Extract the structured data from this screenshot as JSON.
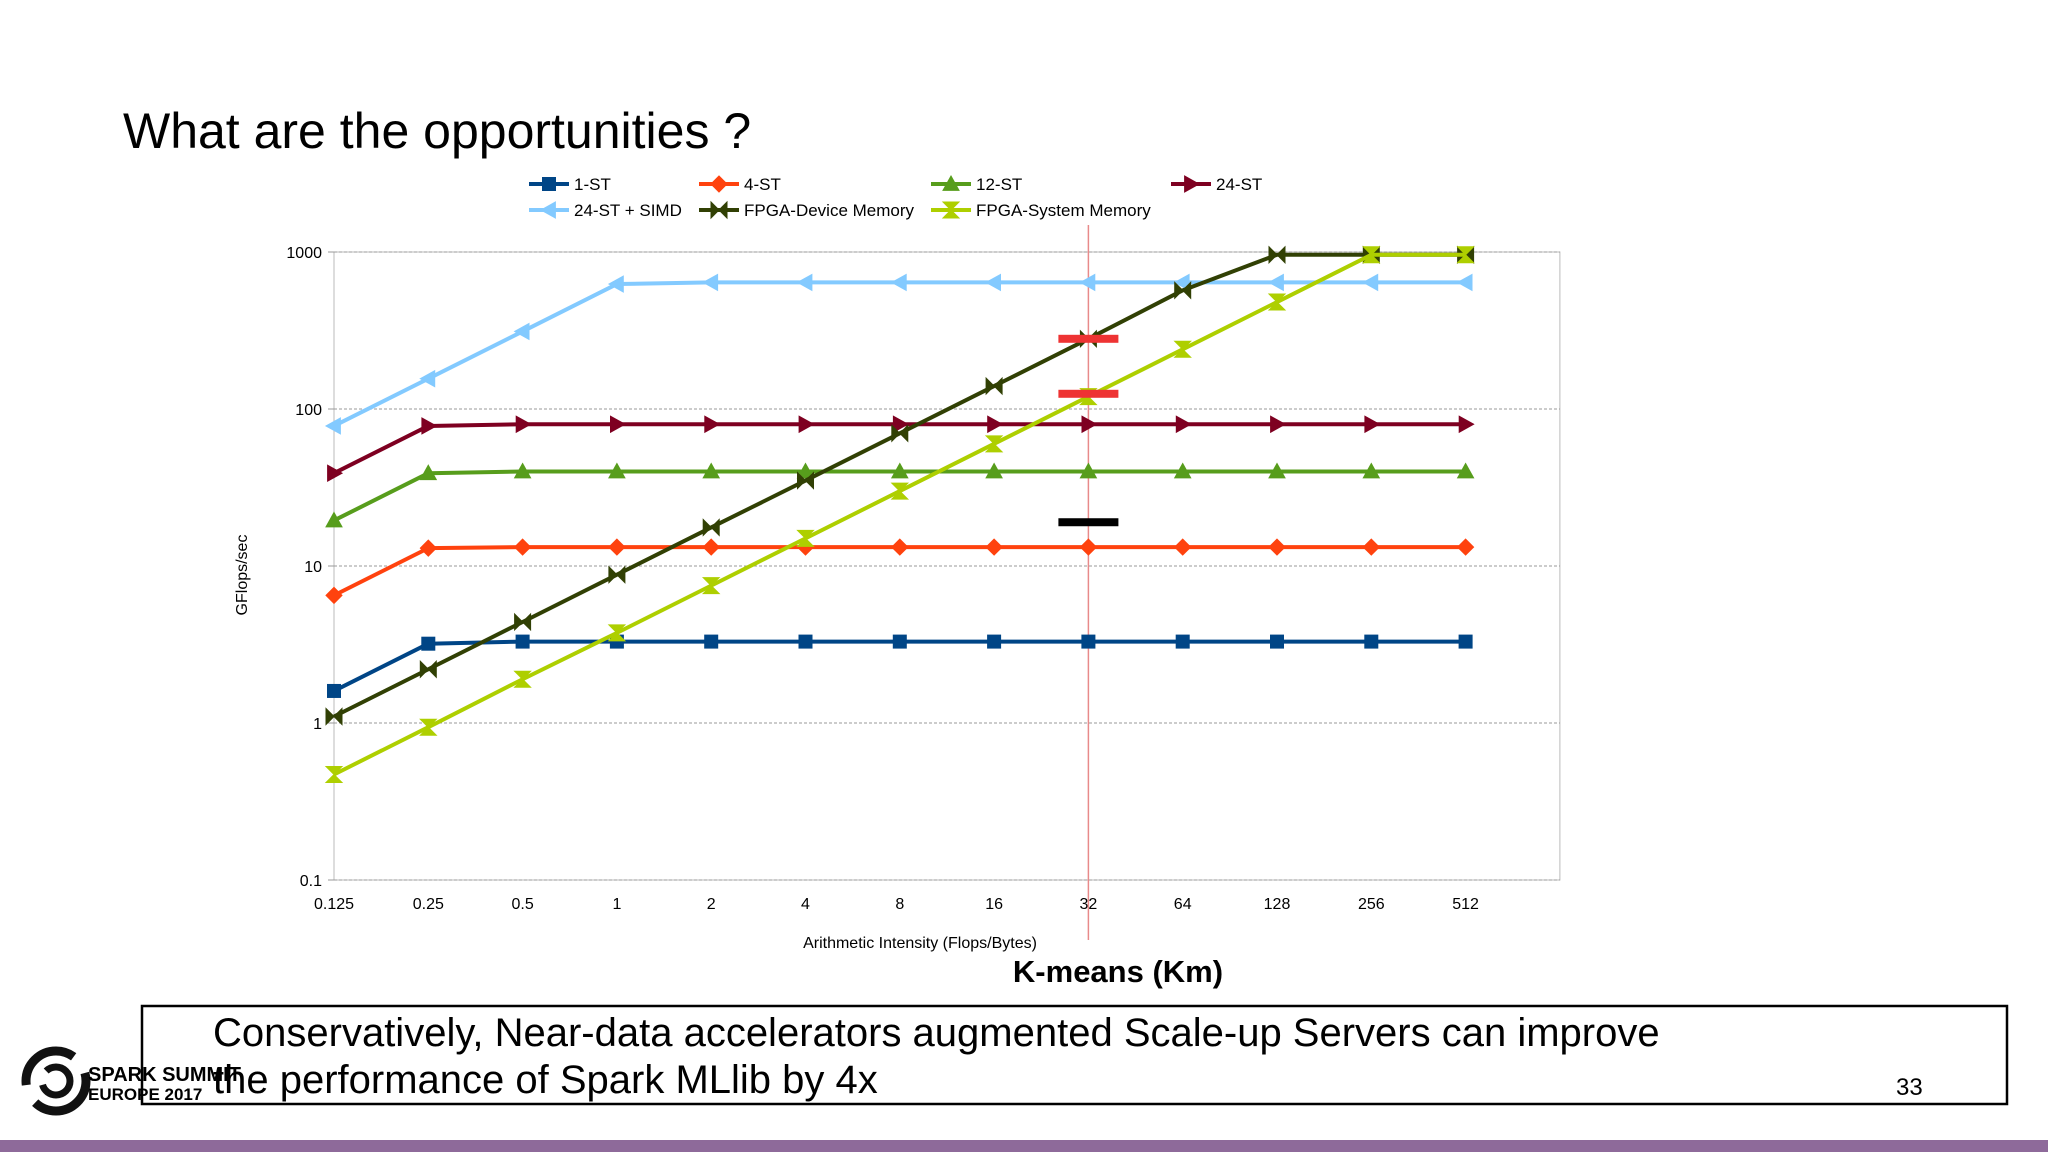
{
  "slide": {
    "title": "What are the opportunities ?",
    "caption": "K-means (Km)",
    "callout": [
      "Conservatively,  Near-data accelerators augmented Scale-up Servers can improve",
      "the performance of Spark MLlib by 4x"
    ],
    "page_number": "33",
    "logo": [
      "SPARK SUMMIT",
      "EUROPE 2017"
    ]
  },
  "chart_data": {
    "type": "line",
    "x_label": "Arithmetic Intensity (Flops/Bytes)",
    "y_label": "GFlops/sec",
    "categories": [
      "0.125",
      "0.25",
      "0.5",
      "1",
      "2",
      "4",
      "8",
      "16",
      "32",
      "64",
      "128",
      "256",
      "512"
    ],
    "y_scale": "log",
    "ylim": [
      0.1,
      1000
    ],
    "yticks": [
      0.1,
      1,
      10,
      100,
      1000
    ],
    "grid": true,
    "legend": "top",
    "series": [
      {
        "name": "1-ST",
        "color": "#004586",
        "marker": "square",
        "values": [
          1.6,
          3.2,
          3.3,
          3.3,
          3.3,
          3.3,
          3.3,
          3.3,
          3.3,
          3.3,
          3.3,
          3.3,
          3.3
        ]
      },
      {
        "name": "4-ST",
        "color": "#ff420e",
        "marker": "diamond",
        "values": [
          6.5,
          13,
          13.2,
          13.2,
          13.2,
          13.2,
          13.2,
          13.2,
          13.2,
          13.2,
          13.2,
          13.2,
          13.2
        ]
      },
      {
        "name": "12-ST",
        "color": "#579d1c",
        "marker": "triangle-up",
        "values": [
          19.5,
          39,
          40,
          40,
          40,
          40,
          40,
          40,
          40,
          40,
          40,
          40,
          40
        ]
      },
      {
        "name": "24-ST",
        "color": "#7e0021",
        "marker": "triangle-right",
        "values": [
          39,
          78,
          80,
          80,
          80,
          80,
          80,
          80,
          80,
          80,
          80,
          80,
          80
        ]
      },
      {
        "name": "24-ST + SIMD",
        "color": "#83caff",
        "marker": "triangle-left",
        "values": [
          78,
          156,
          312,
          625,
          640,
          640,
          640,
          640,
          640,
          640,
          640,
          640,
          640
        ]
      },
      {
        "name": "FPGA-Device Memory",
        "color": "#314004",
        "marker": "bowtie",
        "values": [
          1.1,
          2.2,
          4.4,
          8.8,
          17.6,
          35,
          70,
          140,
          280,
          570,
          960,
          960,
          960
        ]
      },
      {
        "name": "FPGA-System Memory",
        "color": "#aecf00",
        "marker": "hourglass",
        "values": [
          0.47,
          0.94,
          1.9,
          3.75,
          7.5,
          15,
          30,
          60,
          120,
          240,
          480,
          960,
          960
        ]
      }
    ],
    "reference_line": {
      "x": "32",
      "color": "#e88a8a"
    },
    "reference_marks": [
      {
        "x": "32",
        "value": 280,
        "color": "#ee3333"
      },
      {
        "x": "32",
        "value": 125,
        "color": "#ee3333"
      },
      {
        "x": "32",
        "value": 19,
        "color": "#000000"
      }
    ]
  }
}
